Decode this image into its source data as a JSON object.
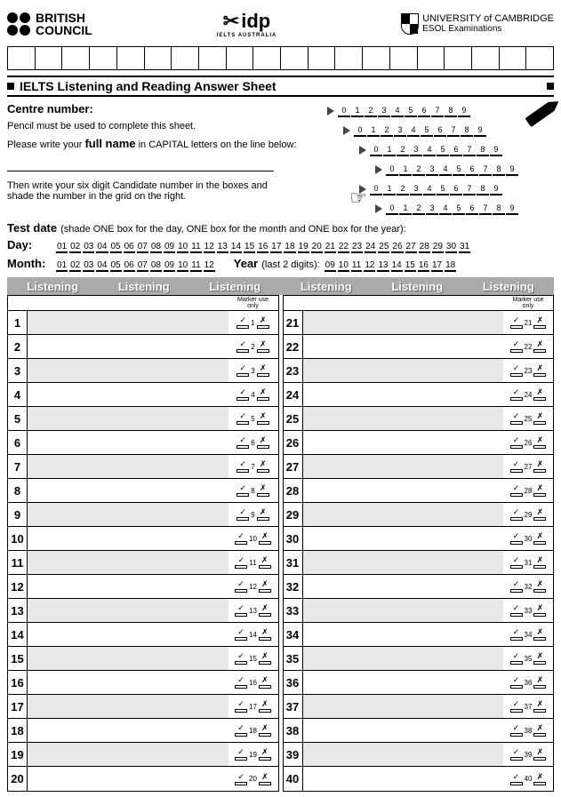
{
  "logos": {
    "british_council": "BRITISH\nCOUNCIL",
    "idp": "idp",
    "idp_sub": "IELTS AUSTRALIA",
    "cambridge1": "UNIVERSITY of CAMBRIDGE",
    "cambridge2": "ESOL Examinations"
  },
  "title": "IELTS Listening and Reading Answer Sheet",
  "centre_label": "Centre number:",
  "pencil_note": "Pencil must be used to complete this sheet.",
  "fullname_note_pre": "Please write your ",
  "fullname_bold": "full name",
  "fullname_note_post": " in CAPITAL letters on the line below:",
  "candidate_note": "Then write your six digit Candidate number in the boxes and shade the number in the grid on the right.",
  "testdate_label": "Test date",
  "testdate_note": " (shade ONE box for the day, ONE box for the month and ONE box for the year):",
  "day_label": "Day:",
  "month_label": "Month:",
  "year_label": "Year",
  "year_note": " (last 2 digits):",
  "digits": [
    "0",
    "1",
    "2",
    "3",
    "4",
    "5",
    "6",
    "7",
    "8",
    "9"
  ],
  "days": [
    "01",
    "02",
    "03",
    "04",
    "05",
    "06",
    "07",
    "08",
    "09",
    "10",
    "11",
    "12",
    "13",
    "14",
    "15",
    "16",
    "17",
    "18",
    "19",
    "20",
    "21",
    "22",
    "23",
    "24",
    "25",
    "26",
    "27",
    "28",
    "29",
    "30",
    "31"
  ],
  "months": [
    "01",
    "02",
    "03",
    "04",
    "05",
    "06",
    "07",
    "08",
    "09",
    "10",
    "11",
    "12"
  ],
  "years": [
    "09",
    "10",
    "11",
    "12",
    "13",
    "14",
    "15",
    "16",
    "17",
    "18"
  ],
  "section_word": "Listening",
  "marker_label": "Marker use only",
  "tick": "✓",
  "cross": "✗",
  "col1_start": 1,
  "col1_end": 20,
  "col2_start": 21,
  "col2_end": 40,
  "top_cells": 20,
  "num_grid_rows": 6,
  "colors": {
    "header_bg": "#aaaaaa",
    "shade": "#e8e8e8"
  }
}
